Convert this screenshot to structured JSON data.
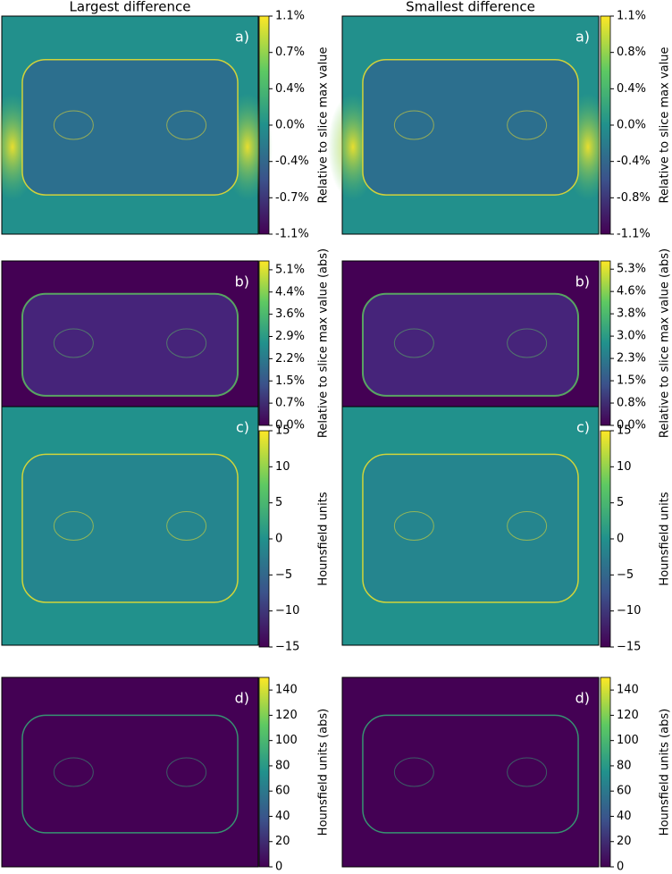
{
  "chart_data": [
    {
      "type": "heatmap",
      "title": "Largest difference",
      "panel_label": "a)",
      "colorbar_label": "Relative to slice max value",
      "ylim": [
        -1.1,
        1.1
      ],
      "yticks": [
        {
          "value": -1.1,
          "label": "-1.1%"
        },
        {
          "value": -0.733,
          "label": "-0.7%"
        },
        {
          "value": -0.367,
          "label": "-0.4%"
        },
        {
          "value": 0,
          "label": "0.0%"
        },
        {
          "value": 0.367,
          "label": "0.4%"
        },
        {
          "value": 0.733,
          "label": "0.7%"
        },
        {
          "value": 1.1,
          "label": "1.1%"
        }
      ]
    },
    {
      "type": "heatmap",
      "title": "Smallest difference",
      "panel_label": "a)",
      "colorbar_label": "Relative to slice max value",
      "ylim": [
        -1.14,
        1.14
      ],
      "yticks": [
        {
          "value": -1.14,
          "label": "-1.1%"
        },
        {
          "value": -0.76,
          "label": "-0.8%"
        },
        {
          "value": -0.38,
          "label": "-0.4%"
        },
        {
          "value": 0,
          "label": "0.0%"
        },
        {
          "value": 0.38,
          "label": "0.4%"
        },
        {
          "value": 0.76,
          "label": "0.8%"
        },
        {
          "value": 1.14,
          "label": "1.1%"
        }
      ]
    },
    {
      "type": "heatmap",
      "panel_label": "b)",
      "colorbar_label": "Relative to slice max value (abs)",
      "ylim": [
        0,
        5.4
      ],
      "yticks": [
        {
          "value": 0,
          "label": "0.0%"
        },
        {
          "value": 0.73,
          "label": "0.7%"
        },
        {
          "value": 1.46,
          "label": "1.5%"
        },
        {
          "value": 2.19,
          "label": "2.2%"
        },
        {
          "value": 2.92,
          "label": "2.9%"
        },
        {
          "value": 3.65,
          "label": "3.6%"
        },
        {
          "value": 4.38,
          "label": "4.4%"
        },
        {
          "value": 5.11,
          "label": "5.1%"
        }
      ]
    },
    {
      "type": "heatmap",
      "panel_label": "b)",
      "colorbar_label": "Relative to slice max value (abs)",
      "ylim": [
        0,
        5.6
      ],
      "yticks": [
        {
          "value": 0,
          "label": "0.0%"
        },
        {
          "value": 0.76,
          "label": "0.8%"
        },
        {
          "value": 1.52,
          "label": "1.5%"
        },
        {
          "value": 2.28,
          "label": "2.3%"
        },
        {
          "value": 3.04,
          "label": "3.0%"
        },
        {
          "value": 3.8,
          "label": "3.8%"
        },
        {
          "value": 4.56,
          "label": "4.6%"
        },
        {
          "value": 5.32,
          "label": "5.3%"
        }
      ]
    },
    {
      "type": "heatmap",
      "panel_label": "c)",
      "colorbar_label": "Hounsfield units",
      "ylim": [
        -15,
        15
      ],
      "yticks": [
        {
          "value": -15,
          "label": "−15"
        },
        {
          "value": -10,
          "label": "−10"
        },
        {
          "value": -5,
          "label": "−5"
        },
        0,
        5,
        10,
        15
      ]
    },
    {
      "type": "heatmap",
      "panel_label": "c)",
      "colorbar_label": "Hounsfield units",
      "ylim": [
        -15,
        15
      ],
      "yticks": [
        {
          "value": -15,
          "label": "−15"
        },
        {
          "value": -10,
          "label": "−10"
        },
        {
          "value": -5,
          "label": "−5"
        },
        0,
        5,
        10,
        15
      ]
    },
    {
      "type": "heatmap",
      "panel_label": "d)",
      "colorbar_label": "Hounsfield units (abs)",
      "ylim": [
        0,
        150
      ],
      "yticks": [
        0,
        20,
        40,
        60,
        80,
        100,
        120,
        140
      ]
    },
    {
      "type": "heatmap",
      "panel_label": "d)",
      "colorbar_label": "Hounsfield units (abs)",
      "ylim": [
        0,
        150
      ],
      "yticks": [
        0,
        20,
        40,
        60,
        80,
        100,
        120,
        140
      ]
    }
  ]
}
